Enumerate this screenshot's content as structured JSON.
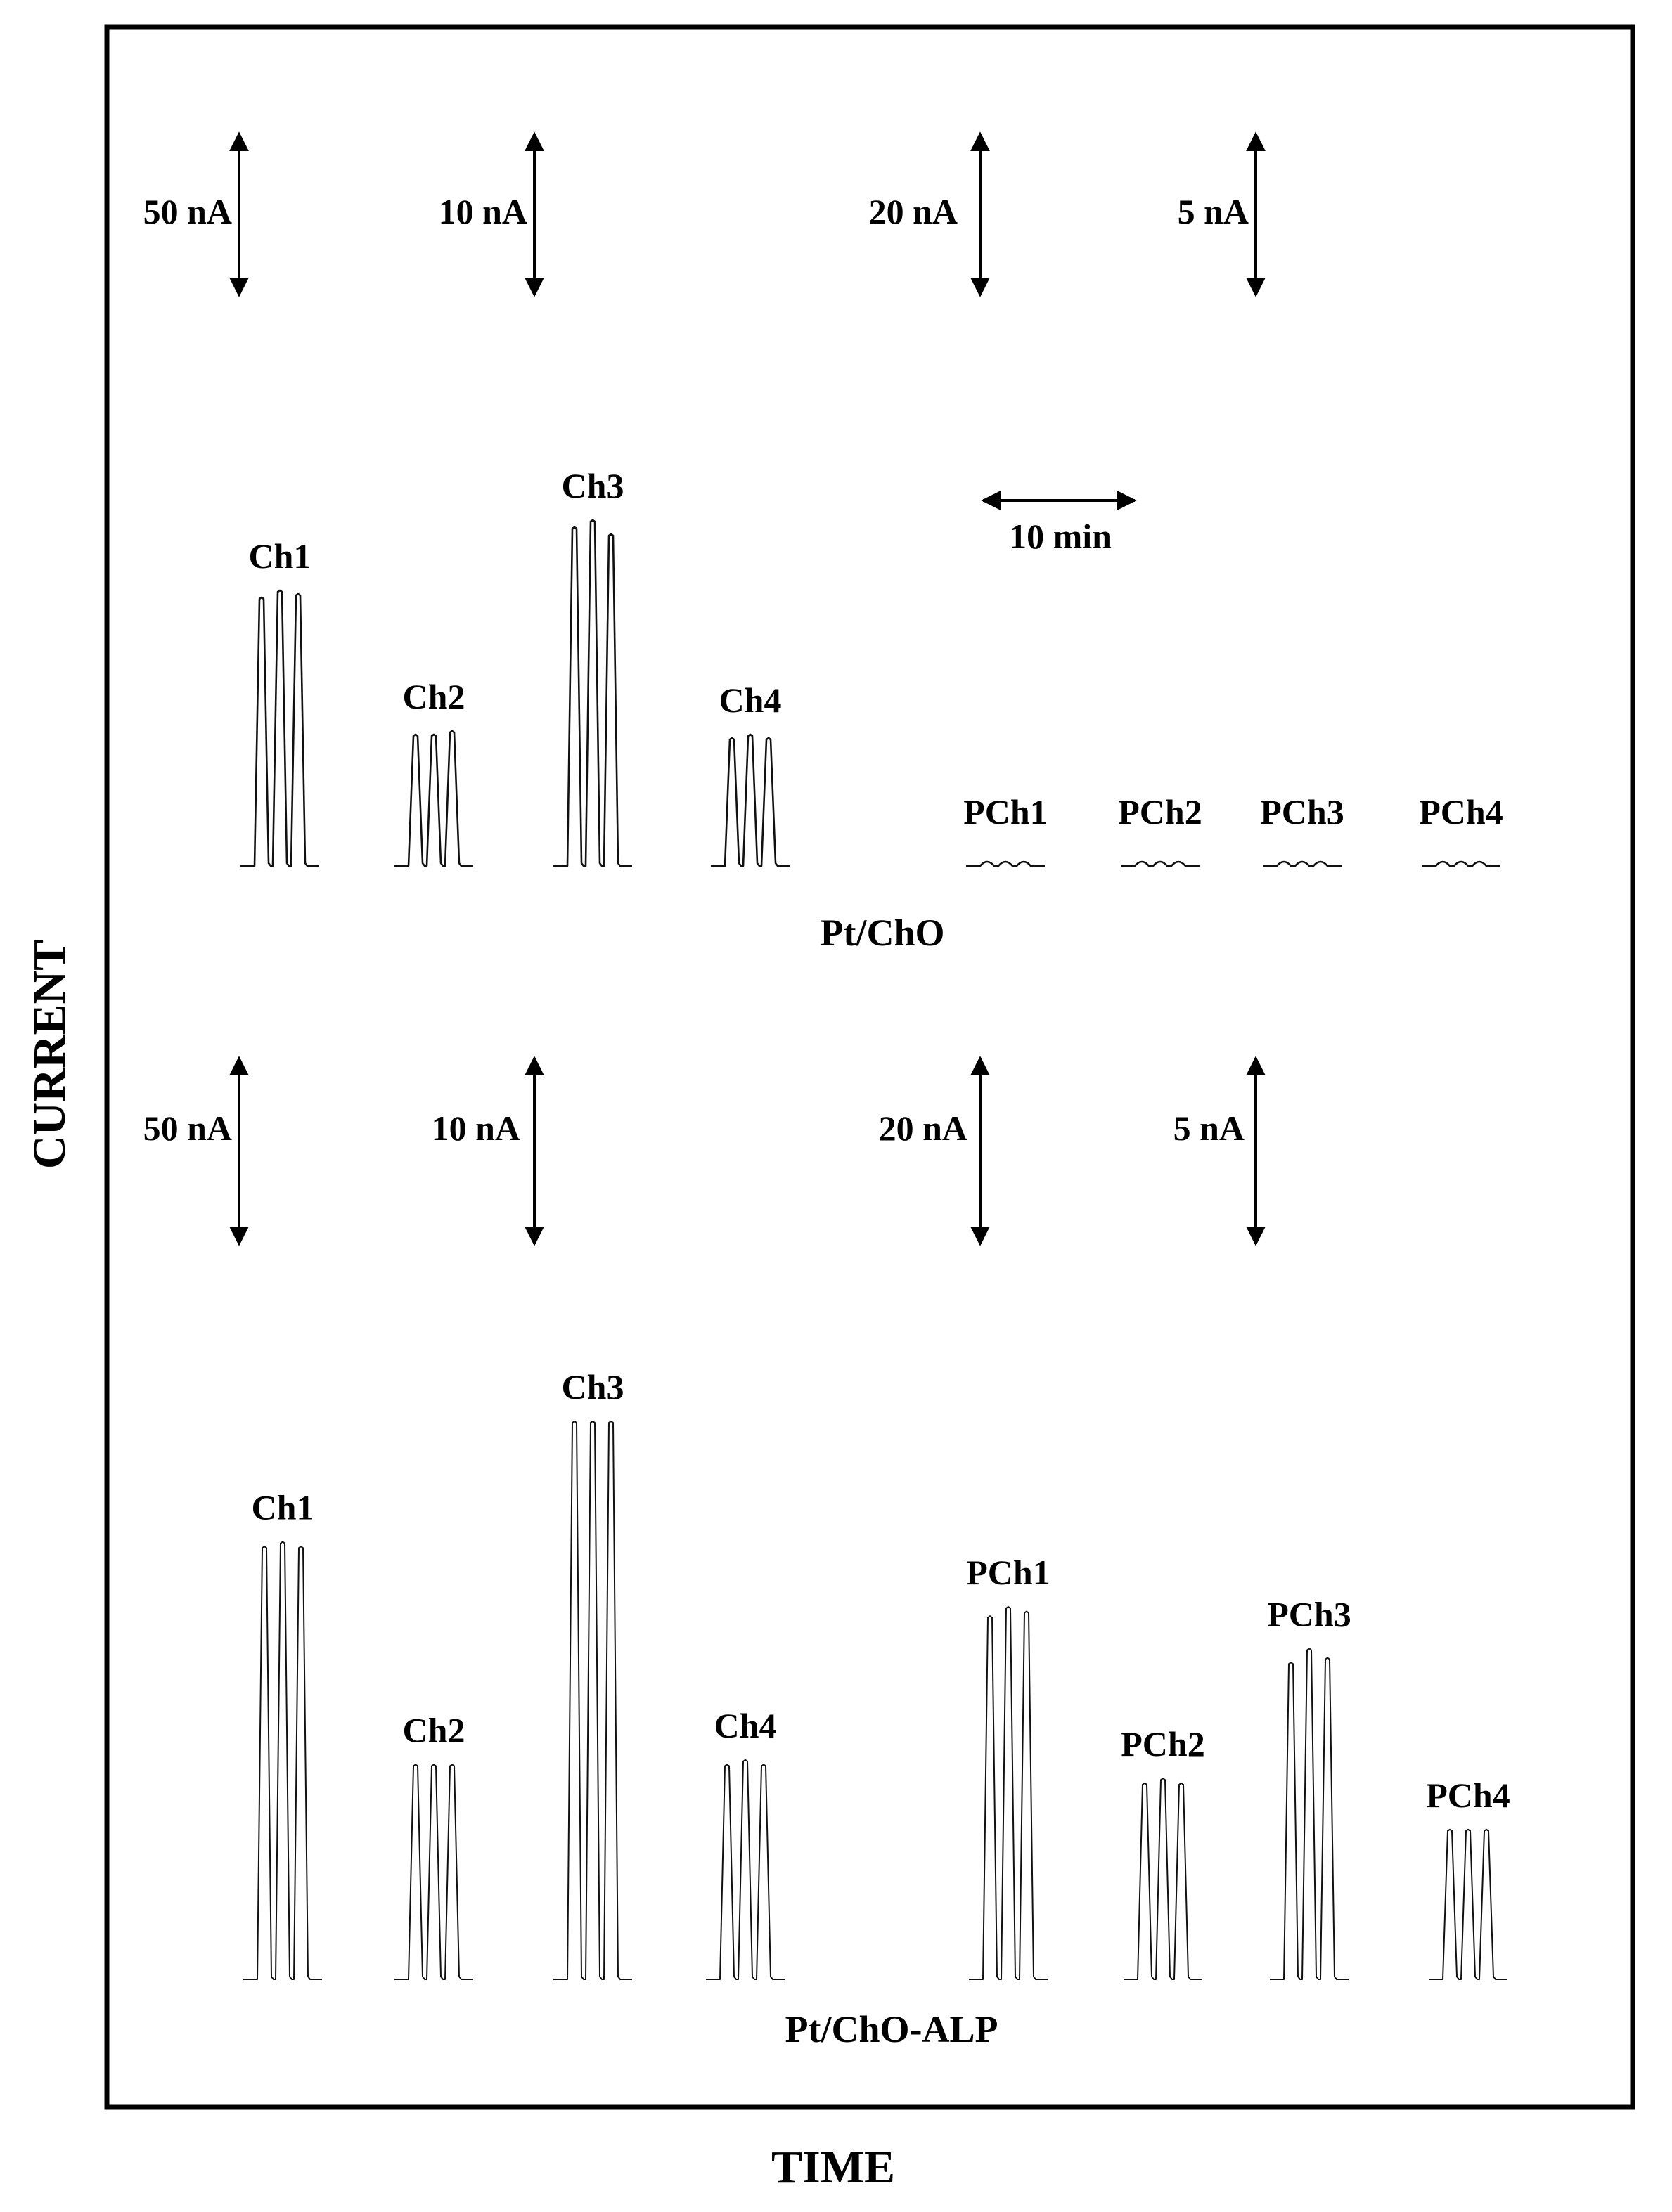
{
  "axes": {
    "xlabel": "TIME",
    "ylabel": "CURRENT"
  },
  "time_scale_label": "10 min",
  "chart_data": [
    {
      "type": "line",
      "title": "Pt/ChO",
      "xlabel": "TIME",
      "ylabel": "CURRENT",
      "scale_bars": [
        "50 nA",
        "10 nA",
        "20 nA",
        "5 nA"
      ],
      "peaks": [
        {
          "label": "Ch1",
          "scale": "50 nA",
          "heights": [
            0.76,
            0.78,
            0.77
          ]
        },
        {
          "label": "Ch2",
          "scale": "50 nA",
          "heights": [
            0.37,
            0.37,
            0.38
          ]
        },
        {
          "label": "Ch3",
          "scale": "10 nA",
          "heights": [
            0.96,
            0.98,
            0.94
          ]
        },
        {
          "label": "Ch4",
          "scale": "10 nA",
          "heights": [
            0.36,
            0.37,
            0.36
          ]
        },
        {
          "label": "PCh1",
          "scale": "20 nA",
          "heights": [
            0.01,
            0.01,
            0.01
          ]
        },
        {
          "label": "PCh2",
          "scale": "20 nA",
          "heights": [
            0.01,
            0.01,
            0.01
          ]
        },
        {
          "label": "PCh3",
          "scale": "5 nA",
          "heights": [
            0.01,
            0.01,
            0.01
          ]
        },
        {
          "label": "PCh4",
          "scale": "5 nA",
          "heights": [
            0.01,
            0.01,
            0.01
          ]
        }
      ]
    },
    {
      "type": "line",
      "title": "Pt/ChO-ALP",
      "xlabel": "TIME",
      "ylabel": "CURRENT",
      "scale_bars": [
        "50 nA",
        "10 nA",
        "20 nA",
        "5 nA"
      ],
      "peaks": [
        {
          "label": "Ch1",
          "scale": "50 nA",
          "heights": [
            0.93,
            0.94,
            0.93
          ]
        },
        {
          "label": "Ch2",
          "scale": "50 nA",
          "heights": [
            0.46,
            0.46,
            0.46
          ]
        },
        {
          "label": "Ch3",
          "scale": "10 nA",
          "heights": [
            1.2,
            1.2,
            1.2
          ]
        },
        {
          "label": "Ch4",
          "scale": "10 nA",
          "heights": [
            0.46,
            0.47,
            0.46
          ]
        },
        {
          "label": "PCh1",
          "scale": "20 nA",
          "heights": [
            0.78,
            0.8,
            0.79
          ]
        },
        {
          "label": "PCh2",
          "scale": "20 nA",
          "heights": [
            0.42,
            0.43,
            0.42
          ]
        },
        {
          "label": "PCh3",
          "scale": "5 nA",
          "heights": [
            0.68,
            0.71,
            0.69
          ]
        },
        {
          "label": "PCh4",
          "scale": "5 nA",
          "heights": [
            0.32,
            0.32,
            0.32
          ]
        }
      ]
    }
  ]
}
